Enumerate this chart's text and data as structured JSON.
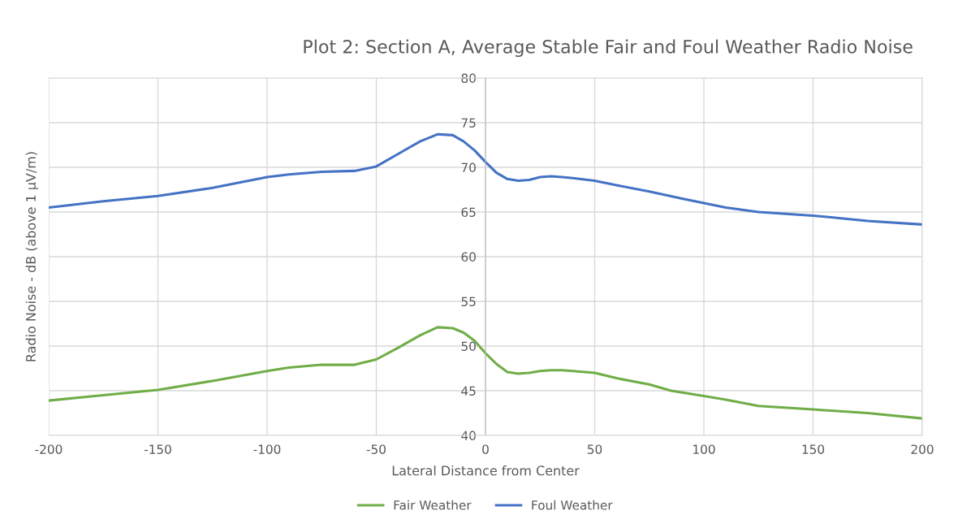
{
  "chart_data": {
    "type": "line",
    "title": "Plot 2: Section A, Average Stable Fair and Foul Weather Radio Noise",
    "xlabel": "Lateral Distance from Center",
    "ylabel": "Radio Noise - dB (above 1 µV/m)",
    "xlim": [
      -200,
      200
    ],
    "xticks": [
      -200,
      -150,
      -100,
      -50,
      0,
      50,
      100,
      150,
      200
    ],
    "ylim": [
      40,
      80
    ],
    "yticks": [
      40,
      45,
      50,
      55,
      60,
      65,
      70,
      75,
      80
    ],
    "grid": true,
    "legend": "bottom",
    "marker": "none",
    "line_style": "solid",
    "series": [
      {
        "name": "Fair Weather",
        "color": "#70ad47",
        "x": [
          -200,
          -175,
          -150,
          -125,
          -100,
          -90,
          -75,
          -60,
          -50,
          -40,
          -30,
          -22,
          -15,
          -10,
          -5,
          0,
          5,
          10,
          15,
          20,
          25,
          30,
          35,
          40,
          50,
          60,
          75,
          85,
          100,
          110,
          125,
          150,
          175,
          200
        ],
        "values": [
          43.9,
          44.5,
          45.1,
          46.1,
          47.2,
          47.6,
          47.9,
          47.9,
          48.5,
          49.8,
          51.2,
          52.1,
          52.0,
          51.5,
          50.6,
          49.2,
          48.0,
          47.1,
          46.9,
          47.0,
          47.2,
          47.3,
          47.3,
          47.2,
          47.0,
          46.4,
          45.7,
          45.0,
          44.4,
          44.0,
          43.3,
          42.9,
          42.5,
          41.9
        ]
      },
      {
        "name": "Foul Weather",
        "color": "#4472c4",
        "x": [
          -200,
          -175,
          -150,
          -125,
          -100,
          -90,
          -75,
          -60,
          -50,
          -40,
          -30,
          -22,
          -15,
          -10,
          -5,
          0,
          5,
          10,
          15,
          20,
          25,
          30,
          35,
          40,
          50,
          60,
          75,
          90,
          100,
          110,
          125,
          150,
          175,
          200
        ],
        "values": [
          65.5,
          66.2,
          66.8,
          67.7,
          68.9,
          69.2,
          69.5,
          69.6,
          70.1,
          71.5,
          72.9,
          73.7,
          73.6,
          72.9,
          71.9,
          70.6,
          69.4,
          68.7,
          68.5,
          68.6,
          68.9,
          69.0,
          68.9,
          68.8,
          68.5,
          68.0,
          67.3,
          66.5,
          66.0,
          65.5,
          65.0,
          64.6,
          64.0,
          63.6
        ]
      }
    ]
  }
}
